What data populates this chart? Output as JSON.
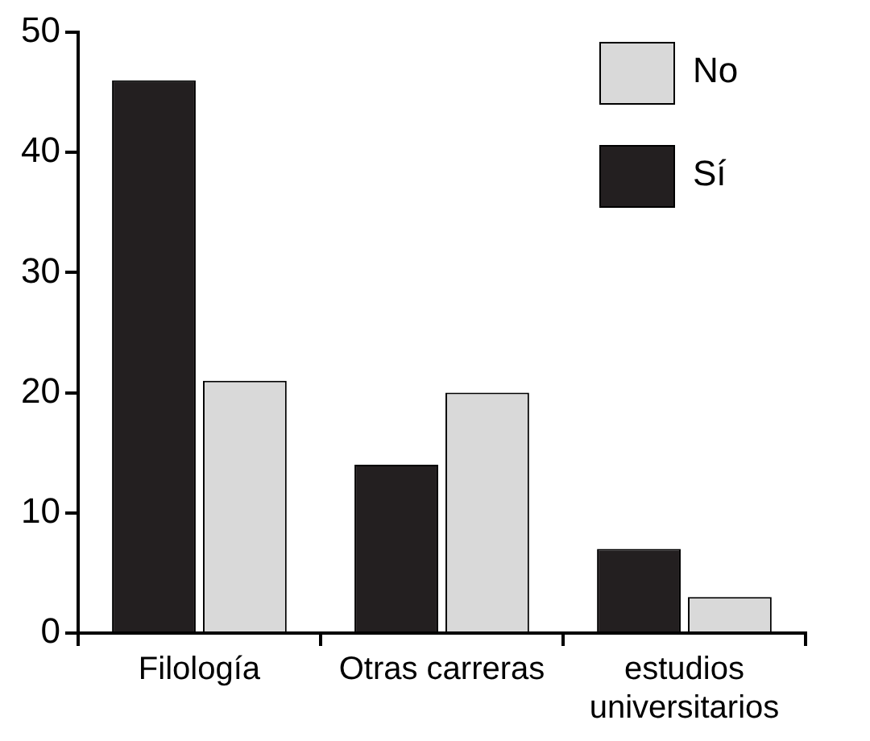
{
  "chart_data": {
    "type": "bar",
    "categories": [
      "Filología",
      "Otras carreras",
      "estudios universitarios"
    ],
    "series": [
      {
        "name": "Sí",
        "color": "#231f20",
        "values": [
          46,
          14,
          7
        ]
      },
      {
        "name": "No",
        "color": "#d9d9d9",
        "values": [
          21,
          20,
          3
        ]
      }
    ],
    "ylim": [
      0,
      50
    ],
    "yticks": [
      0,
      10,
      20,
      30,
      40,
      50
    ],
    "grid": false,
    "legend": "top right"
  }
}
